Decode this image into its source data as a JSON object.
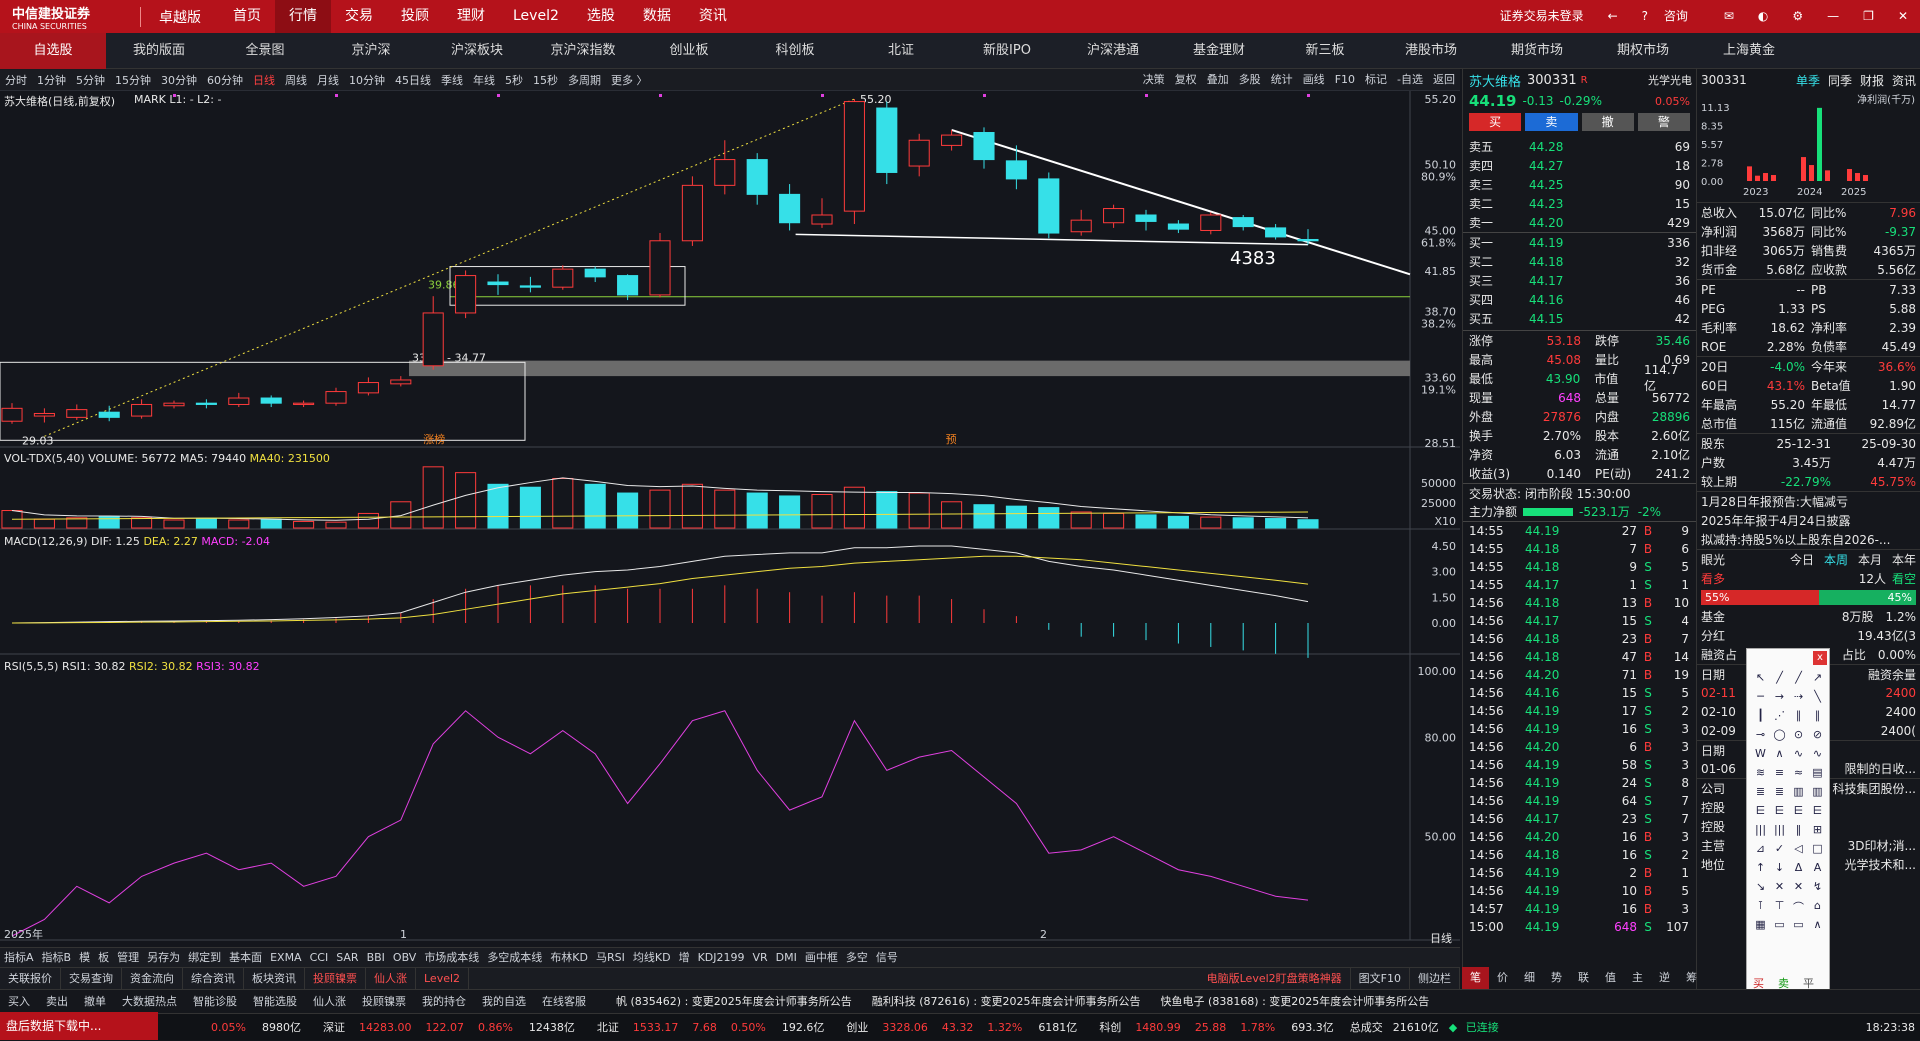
{
  "topbar": {
    "brand": "中信建投证券",
    "brand_en": "CHINA SECURITIES",
    "edition": "卓越版",
    "menu": [
      "首页",
      "行情",
      "交易",
      "投顾",
      "理财",
      "Level2",
      "选股",
      "数据",
      "资讯"
    ],
    "active_menu": "行情",
    "login": "证券交易未登录",
    "consult": "咨询"
  },
  "navbar": [
    "自选股",
    "我的版面",
    "全景图",
    "京沪深",
    "沪深板块",
    "京沪深指数",
    "创业板",
    "科创板",
    "北证",
    "新股IPO",
    "沪深港通",
    "基金理财",
    "新三板",
    "港股市场",
    "期货市场",
    "期权市场",
    "上海黄金"
  ],
  "periodbar": {
    "items": [
      "分时",
      "1分钟",
      "5分钟",
      "15分钟",
      "30分钟",
      "60分钟",
      "日线",
      "周线",
      "月线",
      "10分钟",
      "45日线",
      "季线",
      "年线",
      "5秒",
      "15秒",
      "多周期",
      "更多 〉"
    ],
    "active": "日线",
    "right": [
      "决策",
      "复权",
      "叠加",
      "多股",
      "统计",
      "画线",
      "F10",
      "标记",
      "-自选",
      "返回"
    ]
  },
  "chart": {
    "title": "苏大维格(日线,前复权)",
    "mark": "MARK L1: -  L2: -",
    "price_ticks": [
      {
        "v": "55.20",
        "p": ""
      },
      {
        "v": "50.10",
        "p": "80.9%"
      },
      {
        "v": "45.00",
        "p": "61.8%"
      },
      {
        "v": "41.85",
        "p": ""
      },
      {
        "v": "38.70",
        "p": "38.2%"
      },
      {
        "v": "33.60",
        "p": "19.1%"
      },
      {
        "v": "28.51",
        "p": ""
      }
    ],
    "annotations": {
      "high": "55.20",
      "low": "29.03",
      "box_label": "33.44 - 34.77",
      "level": "39.86",
      "mark_num": "4383",
      "tag_up": "涨榜",
      "tag_pre": "预"
    },
    "x_labels": [
      "2025年",
      "1",
      "2"
    ],
    "volume": {
      "label": "VOL-TDX(5,40)",
      "vol": "VOLUME: 56772",
      "ma5": "MA5: 79440",
      "ma40": "MA40: 231500",
      "ticks": [
        "50000",
        "25000",
        "X10"
      ]
    },
    "macd": {
      "label": "MACD(12,26,9)",
      "dif": "DIF: 1.25",
      "dea": "DEA: 2.27",
      "macd": "MACD: -2.04",
      "ticks": [
        "4.50",
        "3.00",
        "1.50",
        "0.00"
      ]
    },
    "rsi": {
      "label": "RSI(5,5,5)",
      "rsi1": "RSI1: 30.82",
      "rsi2": "RSI2: 30.82",
      "rsi3": "RSI3: 30.82",
      "ticks": [
        "100.00",
        "80.00",
        "50.00"
      ],
      "day": "日线"
    }
  },
  "chart_data": {
    "type": "candlestick",
    "ylim": [
      28.51,
      55.2
    ],
    "candles": [
      [
        30.2,
        31.2,
        30.0,
        31.6
      ],
      [
        30.6,
        30.8,
        30.1,
        31.2
      ],
      [
        30.5,
        31.1,
        30.3,
        31.5
      ],
      [
        30.9,
        30.5,
        30.2,
        31.4
      ],
      [
        30.6,
        31.5,
        30.4,
        31.9
      ],
      [
        31.4,
        31.6,
        31.2,
        31.8
      ],
      [
        31.6,
        31.5,
        31.2,
        31.9
      ],
      [
        31.5,
        32.0,
        31.3,
        32.4
      ],
      [
        32.0,
        31.6,
        31.3,
        32.2
      ],
      [
        31.5,
        31.6,
        31.3,
        31.8
      ],
      [
        31.6,
        32.5,
        31.4,
        32.8
      ],
      [
        32.4,
        33.2,
        32.2,
        33.6
      ],
      [
        33.1,
        33.4,
        32.9,
        33.7
      ],
      [
        34.5,
        38.6,
        34.2,
        39.9
      ],
      [
        38.6,
        41.5,
        38.2,
        41.9
      ],
      [
        41.0,
        40.8,
        40.0,
        41.6
      ],
      [
        40.7,
        40.6,
        40.2,
        41.4
      ],
      [
        40.6,
        42.0,
        40.4,
        42.3
      ],
      [
        42.0,
        41.4,
        41.0,
        42.2
      ],
      [
        41.5,
        40.0,
        39.6,
        41.6
      ],
      [
        40.0,
        44.2,
        39.8,
        44.8
      ],
      [
        44.2,
        48.5,
        43.8,
        49.2
      ],
      [
        48.5,
        50.5,
        47.8,
        52.0
      ],
      [
        50.5,
        47.8,
        47.0,
        51.0
      ],
      [
        47.8,
        45.6,
        45.0,
        48.6
      ],
      [
        45.5,
        46.2,
        45.2,
        47.5
      ],
      [
        46.5,
        55.0,
        45.5,
        55.2
      ],
      [
        54.5,
        49.5,
        48.6,
        55.0
      ],
      [
        50.0,
        52.0,
        49.2,
        52.5
      ],
      [
        51.6,
        52.4,
        51.2,
        52.8
      ],
      [
        52.6,
        50.5,
        49.8,
        53.0
      ],
      [
        50.4,
        49.0,
        48.2,
        51.6
      ],
      [
        49.0,
        44.8,
        44.4,
        49.5
      ],
      [
        44.9,
        45.8,
        44.6,
        46.6
      ],
      [
        45.6,
        46.7,
        45.2,
        47.0
      ],
      [
        46.2,
        45.7,
        45.0,
        46.6
      ],
      [
        45.5,
        45.1,
        44.8,
        45.8
      ],
      [
        45.0,
        46.2,
        44.7,
        46.4
      ],
      [
        46.0,
        45.3,
        45.0,
        46.2
      ],
      [
        45.2,
        44.5,
        44.3,
        45.5
      ],
      [
        44.3,
        44.2,
        43.9,
        45.1
      ]
    ],
    "volume": [
      120,
      60,
      70,
      80,
      70,
      55,
      65,
      55,
      60,
      45,
      40,
      100,
      180,
      420,
      380,
      300,
      280,
      340,
      300,
      240,
      260,
      300,
      260,
      240,
      220,
      230,
      280,
      250,
      240,
      180,
      160,
      150,
      140,
      110,
      100,
      90,
      80,
      75,
      70,
      65,
      57
    ],
    "macd_dif": [
      0.0,
      0.02,
      0.05,
      0.08,
      0.1,
      0.12,
      0.14,
      0.16,
      0.2,
      0.25,
      0.32,
      0.42,
      0.6,
      1.2,
      1.8,
      2.2,
      2.5,
      2.8,
      3.0,
      3.1,
      3.3,
      3.6,
      3.9,
      4.0,
      4.1,
      4.1,
      4.4,
      4.4,
      4.5,
      4.5,
      4.3,
      4.1,
      3.6,
      3.3,
      3.1,
      2.8,
      2.5,
      2.2,
      1.9,
      1.6,
      1.25
    ],
    "macd_dea": [
      0.0,
      0.01,
      0.02,
      0.03,
      0.05,
      0.06,
      0.08,
      0.1,
      0.12,
      0.15,
      0.18,
      0.23,
      0.3,
      0.5,
      0.8,
      1.1,
      1.4,
      1.7,
      1.9,
      2.1,
      2.3,
      2.6,
      2.8,
      3.0,
      3.2,
      3.3,
      3.5,
      3.6,
      3.7,
      3.8,
      3.9,
      3.9,
      3.8,
      3.7,
      3.5,
      3.3,
      3.1,
      2.9,
      2.7,
      2.5,
      2.27
    ],
    "rsi": [
      20,
      25,
      35,
      30,
      38,
      42,
      45,
      40,
      42,
      35,
      38,
      50,
      55,
      78,
      88,
      80,
      75,
      82,
      75,
      60,
      72,
      85,
      88,
      70,
      58,
      62,
      85,
      70,
      74,
      76,
      68,
      60,
      45,
      46,
      50,
      45,
      40,
      38,
      35,
      32,
      30.82
    ],
    "supports": {
      "fib_low": 29.03,
      "fib_high": 55.2,
      "level_line": 39.86
    }
  },
  "quote": {
    "name": "苏大维格",
    "code": "300331",
    "tag": "R",
    "price": "44.19",
    "change": "-0.13",
    "pct": "-0.29%",
    "sector": "光学光电",
    "sector_pct": "0.05%",
    "buttons": [
      "买",
      "卖",
      "撤",
      "警"
    ],
    "asks": [
      {
        "l": "卖五",
        "p": "44.28",
        "v": "69"
      },
      {
        "l": "卖四",
        "p": "44.27",
        "v": "18"
      },
      {
        "l": "卖三",
        "p": "44.25",
        "v": "90"
      },
      {
        "l": "卖二",
        "p": "44.23",
        "v": "15"
      },
      {
        "l": "卖一",
        "p": "44.20",
        "v": "429"
      }
    ],
    "bids": [
      {
        "l": "买一",
        "p": "44.19",
        "v": "336"
      },
      {
        "l": "买二",
        "p": "44.18",
        "v": "32"
      },
      {
        "l": "买三",
        "p": "44.17",
        "v": "36"
      },
      {
        "l": "买四",
        "p": "44.16",
        "v": "46"
      },
      {
        "l": "买五",
        "p": "44.15",
        "v": "42"
      }
    ],
    "stats": [
      {
        "a": "涨停",
        "av": "53.18",
        "b": "跌停",
        "bv": "35.46"
      },
      {
        "a": "最高",
        "av": "45.08",
        "b": "量比",
        "bv": "0.69"
      },
      {
        "a": "最低",
        "av": "43.90",
        "b": "市值",
        "bv": "114.7亿"
      },
      {
        "a": "现量",
        "av": "648",
        "b": "总量",
        "bv": "56772"
      },
      {
        "a": "外盘",
        "av": "27876",
        "b": "内盘",
        "bv": "28896"
      },
      {
        "a": "换手",
        "av": "2.70%",
        "b": "股本",
        "bv": "2.60亿"
      },
      {
        "a": "净资",
        "av": "6.03",
        "b": "流通",
        "bv": "2.10亿"
      },
      {
        "a": "收益(3)",
        "av": "0.140",
        "b": "PE(动)",
        "bv": "241.2"
      }
    ],
    "trade_status": "交易状态: 闭市阶段 15:30:00",
    "main_flow_label": "主力净额",
    "main_flow": "-523.1万",
    "main_flow_pct": "-2%",
    "ticks": [
      [
        "14:55",
        "44.19",
        "27",
        "B",
        "9"
      ],
      [
        "14:55",
        "44.18",
        "7",
        "B",
        "6"
      ],
      [
        "14:55",
        "44.18",
        "9",
        "S",
        "5"
      ],
      [
        "14:55",
        "44.17",
        "1",
        "S",
        "1"
      ],
      [
        "14:56",
        "44.18",
        "13",
        "B",
        "10"
      ],
      [
        "14:56",
        "44.17",
        "15",
        "S",
        "4"
      ],
      [
        "14:56",
        "44.18",
        "23",
        "B",
        "7"
      ],
      [
        "14:56",
        "44.18",
        "47",
        "B",
        "14"
      ],
      [
        "14:56",
        "44.20",
        "71",
        "B",
        "19"
      ],
      [
        "14:56",
        "44.16",
        "15",
        "S",
        "5"
      ],
      [
        "14:56",
        "44.19",
        "17",
        "S",
        "2"
      ],
      [
        "14:56",
        "44.19",
        "16",
        "S",
        "3"
      ],
      [
        "14:56",
        "44.20",
        "6",
        "B",
        "3"
      ],
      [
        "14:56",
        "44.19",
        "58",
        "S",
        "3"
      ],
      [
        "14:56",
        "44.19",
        "24",
        "S",
        "8"
      ],
      [
        "14:56",
        "44.19",
        "64",
        "S",
        "7"
      ],
      [
        "14:56",
        "44.17",
        "23",
        "S",
        "7"
      ],
      [
        "14:56",
        "44.20",
        "16",
        "B",
        "3"
      ],
      [
        "14:56",
        "44.18",
        "16",
        "S",
        "2"
      ],
      [
        "14:56",
        "44.19",
        "2",
        "B",
        "1"
      ],
      [
        "14:56",
        "44.19",
        "10",
        "B",
        "5"
      ],
      [
        "14:57",
        "44.19",
        "16",
        "B",
        "3"
      ],
      [
        "15:00",
        "44.19",
        "648",
        "S",
        "107"
      ]
    ]
  },
  "fin": {
    "code": "300331",
    "tabs": [
      "单季",
      "同季",
      "财报",
      "资讯"
    ],
    "profit_label": "净利润(千万)",
    "profit_ticks": [
      "11.13",
      "8.35",
      "5.57",
      "2.78",
      "0.00"
    ],
    "years": [
      "2023",
      "2024",
      "2025"
    ],
    "profit_bars": [
      2.2,
      0.8,
      1.2,
      0.9,
      3.6,
      2.4,
      11.0,
      1.6,
      1.8,
      1.2,
      0.9
    ],
    "rows1": [
      {
        "a": "总收入",
        "av": "15.07亿",
        "b": "同比%",
        "bv": "7.96"
      },
      {
        "a": "净利润",
        "av": "3568万",
        "b": "同比%",
        "bv": "-9.37"
      },
      {
        "a": "扣非经",
        "av": "3065万",
        "b": "销售费",
        "bv": "4365万"
      },
      {
        "a": "货币金",
        "av": "5.68亿",
        "b": "应收款",
        "bv": "5.56亿"
      }
    ],
    "rows2": [
      {
        "a": "PE",
        "av": "--",
        "b": "PB",
        "bv": "7.33"
      },
      {
        "a": "PEG",
        "av": "1.33",
        "b": "PS",
        "bv": "5.88"
      },
      {
        "a": "毛利率",
        "av": "18.62",
        "b": "净利率",
        "bv": "2.39"
      },
      {
        "a": "ROE",
        "av": "2.28%",
        "b": "负债率",
        "bv": "45.49"
      }
    ],
    "rows3": [
      {
        "a": "20日",
        "av": "-4.0%",
        "b": "今年来",
        "bv": "36.6%"
      },
      {
        "a": "60日",
        "av": "43.1%",
        "b": "Beta值",
        "bv": "1.90"
      },
      {
        "a": "年最高",
        "av": "55.20",
        "b": "年最低",
        "bv": "14.77"
      },
      {
        "a": "总市值",
        "av": "115亿",
        "b": "流通值",
        "bv": "92.89亿"
      }
    ],
    "holders": {
      "label": "股东",
      "d1": "25-12-31",
      "d2": "25-09-30",
      "hu": "户数",
      "h1": "3.45万",
      "h2": "4.47万",
      "cmp": "较上期",
      "c1": "-22.79%",
      "c2": "45.75%"
    },
    "news": [
      "1月28日年报预告:大幅减亏",
      "2025年年报于4月24日披露",
      "拟减持:持股5%以上股东自2026-..."
    ],
    "view": {
      "label": "眼光",
      "tabs": [
        "今日",
        "本周",
        "本月",
        "本年"
      ],
      "kan_duo": "看多",
      "pct_left": "55%",
      "kan_kong": "看空",
      "pct_right": "45%",
      "people": "12人"
    },
    "misc": [
      {
        "a": "基金",
        "b": "8万股",
        "c": "1.2%"
      },
      {
        "a": "分红",
        "b": "",
        "c": "19.43亿(3"
      },
      {
        "a": "融资占",
        "b": "占比",
        "c": "0.00%"
      }
    ],
    "margin_header": {
      "a": "日期",
      "b": "融资余量"
    },
    "margin_rows": [
      {
        "d": "02-11",
        "v": "2400"
      },
      {
        "d": "02-10",
        "v": "2400"
      },
      {
        "d": "02-09",
        "v": "2400("
      }
    ],
    "rs_header": "日期",
    "rs_rows": [
      {
        "d": "01-06",
        "t": "限制的日收..."
      }
    ],
    "company": [
      {
        "a": "公司",
        "t": "科技集团股份..."
      },
      {
        "a": "控股",
        "t": ""
      },
      {
        "a": "控股",
        "t": ""
      },
      {
        "a": "主营",
        "t": "3D印材;消..."
      },
      {
        "a": "地位",
        "t": "光学技术和..."
      }
    ]
  },
  "drawtools": {
    "buy": "买",
    "sell": "卖",
    "flat": "平"
  },
  "indbar": [
    "指标A",
    "指标B",
    "模",
    "板",
    "管理",
    "另存为",
    "绑定到",
    "基本面",
    "EXMA",
    "CCI",
    "SAR",
    "BBI",
    "OBV",
    "市场成本线",
    "多空成本线",
    "布林KD",
    "马RSI",
    "均线KD",
    "增",
    "KDJ2199",
    "VR",
    "DMI",
    "画中框",
    "多空",
    "信号"
  ],
  "funcbar": [
    "关联报价",
    "交易查询",
    "资金流向",
    "综合资讯",
    "板块资讯",
    "投顾镍票",
    "仙人涨",
    "Level2"
  ],
  "funcbar_right": [
    "电脑版Level2盯盘策略神器",
    "图文F10",
    "侧边栏"
  ],
  "funcbar_right_tabs": [
    "笔",
    "价",
    "细",
    "势",
    "联",
    "值",
    "主",
    "逆",
    "筹"
  ],
  "appbar": [
    "买入",
    "卖出",
    "撤单",
    "大数据热点",
    "智能诊股",
    "智能选股",
    "仙人涨",
    "投顾镍票",
    "我的持仓",
    "我的自选",
    "在线客服"
  ],
  "ticker": [
    "帆 (835462) : 变更2025年度会计师事务所公告",
    "融利科技 (872616) : 变更2025年度会计师事务所公告",
    "快鱼电子 (838168) : 变更2025年度会计师事务所公告"
  ],
  "statusbar": {
    "popup": "盘后数据下载中...",
    "items": [
      {
        "label": "",
        "v": "",
        "c": "",
        "p": "0.05%",
        "amt": "8980亿"
      },
      {
        "label": "深证",
        "v": "14283.00",
        "c": "122.07",
        "p": "0.86%",
        "amt": "12438亿"
      },
      {
        "label": "北证",
        "v": "1533.17",
        "c": "7.68",
        "p": "0.50%",
        "amt": "192.6亿"
      },
      {
        "label": "创业",
        "v": "3328.06",
        "c": "43.32",
        "p": "1.32%",
        "amt": "6181亿"
      },
      {
        "label": "科创",
        "v": "1480.99",
        "c": "25.88",
        "p": "1.78%",
        "amt": "693.3亿"
      }
    ],
    "total_label": "总成交",
    "total": "21610亿",
    "connected": "已连接",
    "time": "18:23:38"
  }
}
